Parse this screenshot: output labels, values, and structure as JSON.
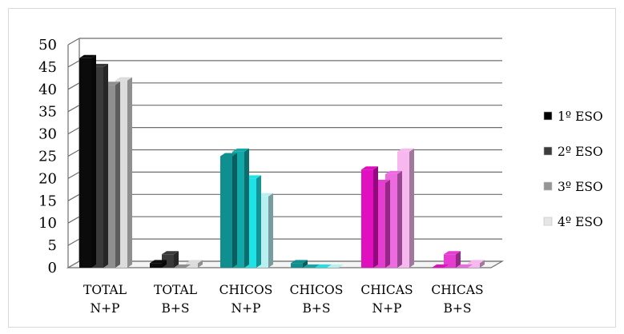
{
  "chart_data": {
    "type": "bar",
    "title": "",
    "xlabel": "",
    "ylabel": "",
    "ylim": [
      0,
      50
    ],
    "yticks": [
      "0",
      "5",
      "10",
      "15",
      "20",
      "25",
      "30",
      "35",
      "40",
      "45",
      "50"
    ],
    "grid": true,
    "legend_position": "right",
    "categories": [
      [
        "TOTAL",
        "N+P"
      ],
      [
        "TOTAL",
        "B+S"
      ],
      [
        "CHICOS",
        "N+P"
      ],
      [
        "CHICOS",
        "B+S"
      ],
      [
        "CHICAS",
        "N+P"
      ],
      [
        "CHICAS",
        "B+S"
      ]
    ],
    "series": [
      {
        "name": "1º ESO",
        "values": [
          47,
          1,
          25,
          1,
          22,
          0
        ]
      },
      {
        "name": "2º ESO",
        "values": [
          45,
          3,
          26,
          0,
          19,
          3
        ]
      },
      {
        "name": "3º ESO",
        "values": [
          41,
          0,
          20,
          0,
          21,
          0
        ]
      },
      {
        "name": "4º ESO",
        "values": [
          42,
          1,
          16,
          0,
          26,
          1
        ]
      }
    ],
    "legend_colors": [
      "#000000",
      "#3c3c3c",
      "#969696",
      "#e6e6e6"
    ],
    "group_colors": [
      [
        "#0b0b0b",
        "#3a3a3a",
        "#8f8f8f",
        "#dcdcdc"
      ],
      [
        "#0b0b0b",
        "#3a3a3a",
        "#8f8f8f",
        "#dcdcdc"
      ],
      [
        "#0f8f8f",
        "#12a8a8",
        "#1ee3e6",
        "#b8f0f2"
      ],
      [
        "#0f8f8f",
        "#12a8a8",
        "#1ee3e6",
        "#b8f0f2"
      ],
      [
        "#e010c0",
        "#e43dd0",
        "#ec6ce0",
        "#f6b8ee"
      ],
      [
        "#e010c0",
        "#e43dd0",
        "#ec6ce0",
        "#f6b8ee"
      ]
    ]
  }
}
